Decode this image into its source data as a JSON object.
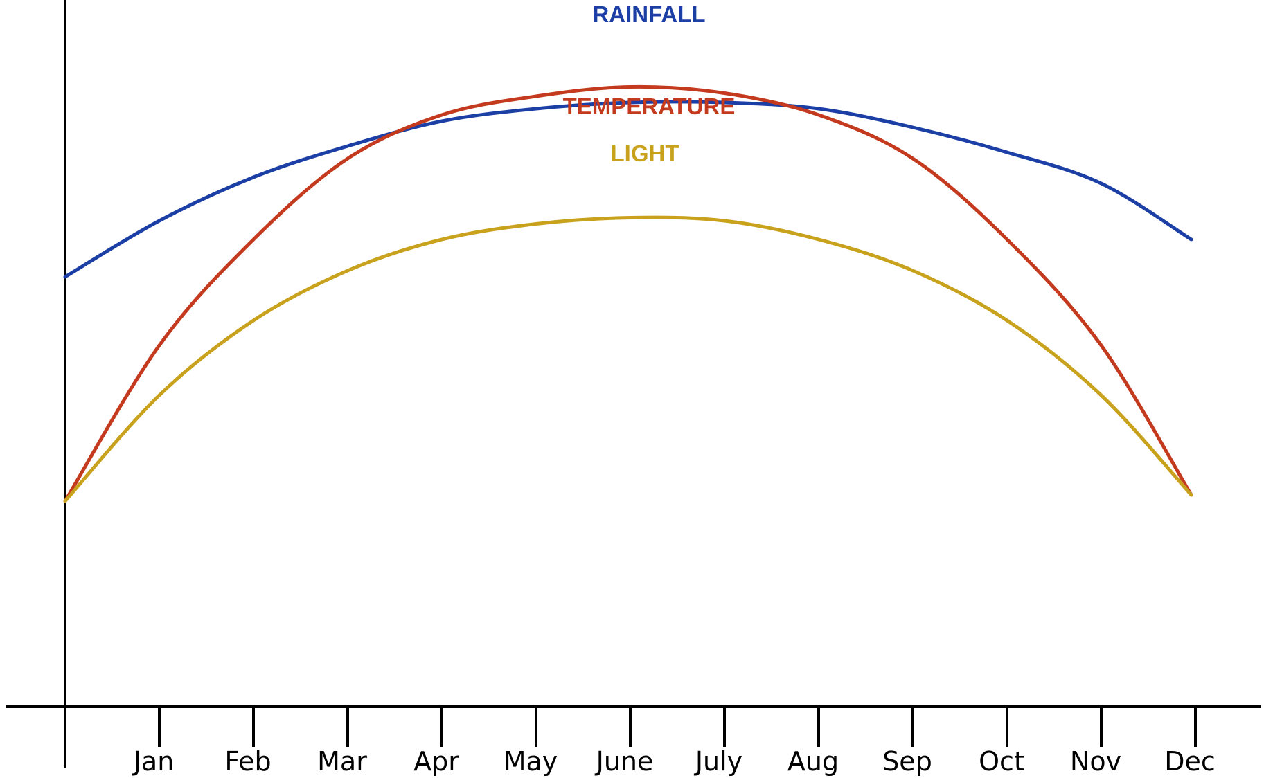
{
  "chart_data": {
    "type": "line",
    "categories": [
      "",
      "Jan",
      "Feb",
      "Mar",
      "Apr",
      "May",
      "June",
      "July",
      "Aug",
      "Sep",
      "Oct",
      "Nov",
      "Dec"
    ],
    "ylim": [
      0,
      100
    ],
    "grid": false,
    "series": [
      {
        "name": "RAINFALL",
        "color": "#1c3fa5",
        "values": [
          69,
          78,
          85,
          90,
          94,
          96,
          97,
          97,
          96,
          93,
          89,
          84,
          75
        ]
      },
      {
        "name": "TEMPERATURE",
        "color": "#c43a1e",
        "values": [
          33,
          58,
          75,
          88,
          95,
          98,
          99.5,
          98.5,
          95,
          88,
          75,
          58,
          34
        ]
      },
      {
        "name": "LIGHT",
        "color": "#c9a21d",
        "values": [
          33,
          50,
          62,
          70,
          75,
          77.5,
          78.5,
          78,
          75,
          70,
          62,
          50,
          34
        ]
      }
    ]
  }
}
